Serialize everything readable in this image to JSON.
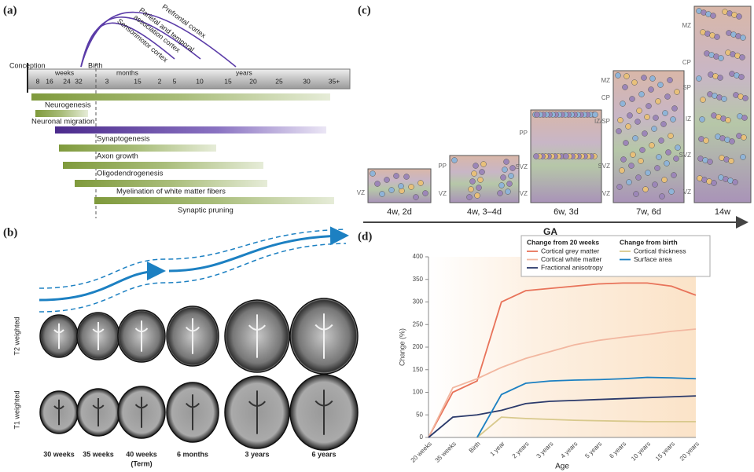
{
  "panel_a": {
    "label": "(a)",
    "regions": [
      "Prefrontal cortex",
      "Parietal and temporal",
      "association cortex",
      "Sensorimotor cortex"
    ],
    "start": "Conception",
    "birth": "Birth",
    "scales": [
      "weeks",
      "months",
      "years"
    ],
    "ticks": [
      "8",
      "16",
      "24",
      "32",
      "3",
      "15",
      "2",
      "5",
      "10",
      "15",
      "20",
      "25",
      "30",
      "35+"
    ],
    "processes": [
      "Neurogenesis",
      "Neuronal migration",
      "Synaptogenesis",
      "Axon growth",
      "Oligodendrogenesis",
      "Myelination of white matter fibers",
      "Synaptic pruning"
    ]
  },
  "panel_b": {
    "label": "(b)",
    "rows": [
      "T2 weighted",
      "T1 weighted"
    ],
    "ages": [
      "30  weeks",
      "35  weeks",
      "40  weeks",
      "6 months",
      "3 years",
      "6 years"
    ],
    "term_note": "(Term)"
  },
  "panel_c": {
    "label": "(c)",
    "axis": "GA",
    "stages": [
      {
        "age": "4w, 2d",
        "layers": [
          "VZ"
        ]
      },
      {
        "age": "4w, 3–4d",
        "layers": [
          "PP",
          "VZ"
        ]
      },
      {
        "age": "6w, 3d",
        "layers": [
          "PP",
          "SVZ",
          "VZ"
        ]
      },
      {
        "age": "7w, 6d",
        "layers": [
          "MZ",
          "CP",
          "IZ/SP",
          "SVZ",
          "VZ"
        ]
      },
      {
        "age": "14w",
        "layers": [
          "MZ",
          "CP",
          "SP",
          "IZ",
          "SVZ",
          "VZ"
        ]
      }
    ]
  },
  "panel_d_label": "(d)",
  "chart_data": {
    "type": "line",
    "ylabel": "Change (%)",
    "xlabel": "Age",
    "categories": [
      "20 weeks",
      "35 weeks",
      "Birth",
      "1 year",
      "2 years",
      "3 years",
      "4 years",
      "5 years",
      "6 years",
      "10 years",
      "15 years",
      "20 years"
    ],
    "ylim": [
      0,
      400
    ],
    "yticks": [
      0,
      50,
      100,
      150,
      200,
      250,
      300,
      350,
      400
    ],
    "legend_titles": [
      "Change from 20 weeks",
      "Change from birth"
    ],
    "series": [
      {
        "name": "Cortical grey matter",
        "color": "#e8735a",
        "values": [
          0,
          100,
          125,
          300,
          325,
          330,
          335,
          340,
          342,
          342,
          335,
          315
        ]
      },
      {
        "name": "Cortical white matter",
        "color": "#f2b7a0",
        "values": [
          0,
          110,
          130,
          155,
          175,
          190,
          205,
          215,
          222,
          228,
          235,
          240
        ]
      },
      {
        "name": "Fractional anisotropy",
        "color": "#2b3a6b",
        "values": [
          0,
          45,
          50,
          60,
          75,
          80,
          82,
          84,
          86,
          88,
          90,
          92
        ]
      },
      {
        "name": "Cortical thickness",
        "color": "#d8c98c",
        "values": [
          null,
          null,
          0,
          45,
          42,
          40,
          38,
          37,
          36,
          35,
          35,
          35
        ]
      },
      {
        "name": "Surface area",
        "color": "#1c80c2",
        "values": [
          null,
          null,
          0,
          95,
          120,
          125,
          127,
          128,
          130,
          133,
          132,
          130
        ]
      }
    ]
  }
}
